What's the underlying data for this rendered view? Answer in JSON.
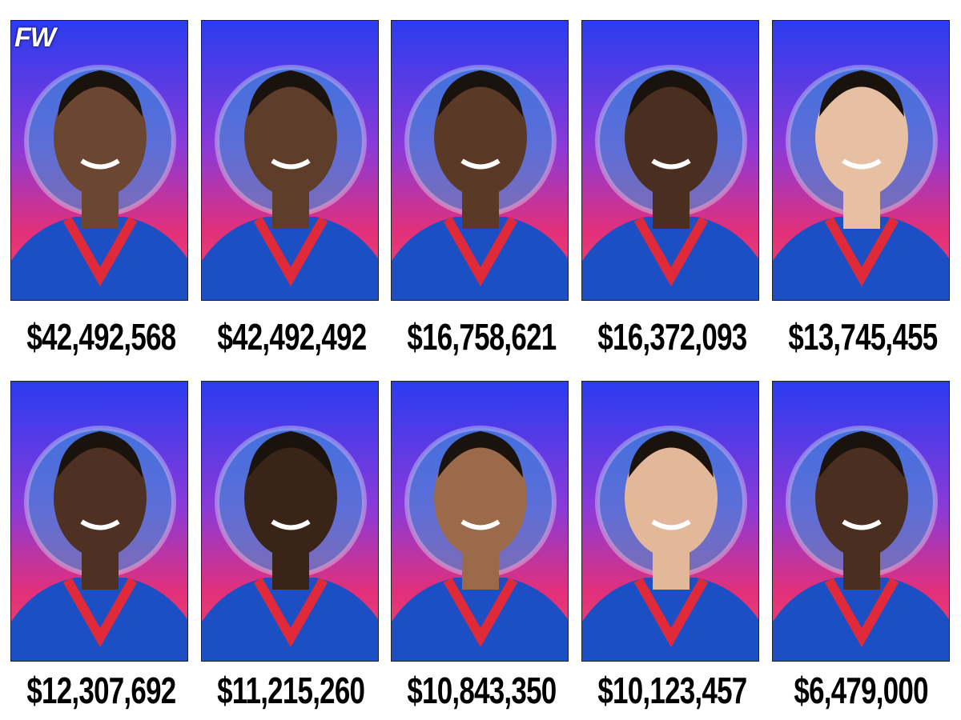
{
  "logo": "FW",
  "players": [
    {
      "salary": "$42,492,568"
    },
    {
      "salary": "$42,492,492"
    },
    {
      "salary": "$16,758,621"
    },
    {
      "salary": "$16,372,093"
    },
    {
      "salary": "$13,745,455"
    },
    {
      "salary": "$12,307,692"
    },
    {
      "salary": "$11,215,260"
    },
    {
      "salary": "$10,843,350"
    },
    {
      "salary": "$10,123,457"
    },
    {
      "salary": "$6,479,000"
    }
  ]
}
